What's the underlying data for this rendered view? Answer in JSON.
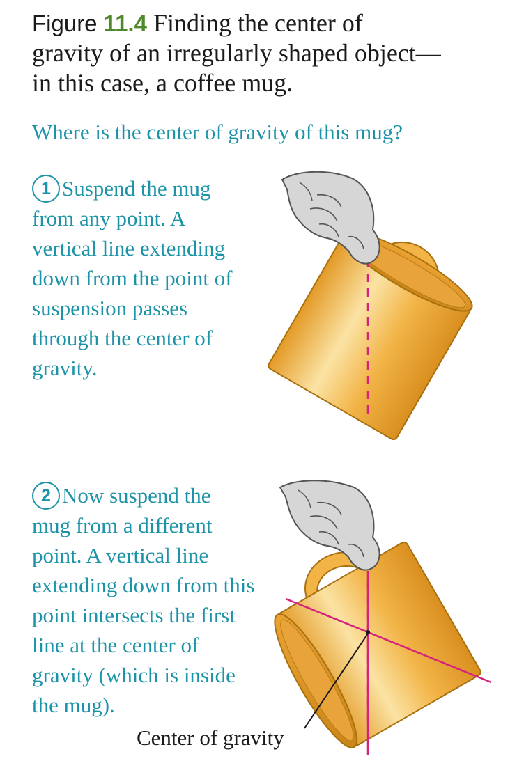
{
  "caption": {
    "figure_word": "Figure",
    "figure_number": "11.4",
    "text_line_1": "Finding the center of",
    "text_line_2": "gravity of an irregularly shaped object—",
    "text_line_3": "in this case, a coffee mug."
  },
  "question": "Where is the center of gravity of this mug?",
  "steps": [
    {
      "number": "1",
      "lines": [
        "Suspend the mug",
        "from any point. A",
        "vertical line extending",
        "down from the point of",
        "suspension passes",
        "through the center of",
        "gravity."
      ]
    },
    {
      "number": "2",
      "lines": [
        "Now suspend the",
        "mug from a different",
        "point. A vertical line",
        "extending down from this",
        "point intersects the first",
        "line at the center of",
        "gravity (which is inside",
        "the mug)."
      ]
    }
  ],
  "center_label": "Center of gravity",
  "colors": {
    "text_dark": "#1a1a1a",
    "figure_number": "#4e8a2a",
    "teal": "#1d93a8",
    "line_magenta": "#d6247c",
    "mug_fill": "#f2b447",
    "mug_dark": "#d98f1f",
    "mug_light": "#fbe3a4",
    "mug_outline": "#a8700f",
    "hand_fill": "#d6d6d6",
    "hand_outline": "#555555"
  }
}
